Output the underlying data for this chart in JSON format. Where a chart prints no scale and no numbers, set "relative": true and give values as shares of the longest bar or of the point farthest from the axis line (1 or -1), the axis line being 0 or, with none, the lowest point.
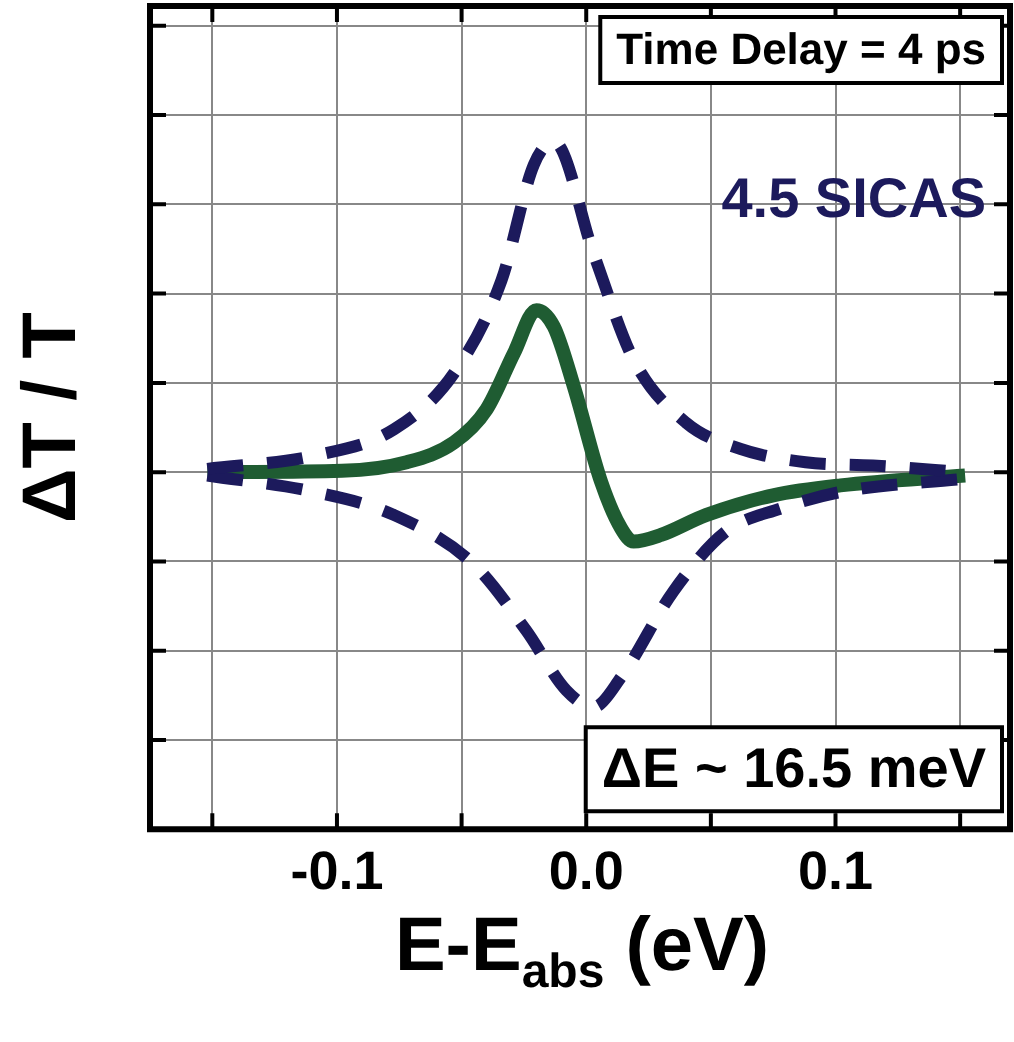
{
  "chart_data": {
    "type": "line",
    "relative": true,
    "xlabel": "E-E$_{abs}$ (eV)",
    "ylabel": "ΔT / T",
    "annotations": [
      "Time Delay = 4 ps",
      "4.5 SICAS",
      "ΔE ~ 16.5 meV"
    ],
    "xlim": [
      -0.175,
      0.17
    ],
    "xticks": [
      {
        "value": -0.15,
        "label": null
      },
      -0.1,
      {
        "value": -0.05,
        "label": null
      },
      {
        "value": 0,
        "label": "0.0"
      },
      {
        "value": 0.05,
        "label": null
      },
      0.1,
      {
        "value": 0.15,
        "label": null
      }
    ],
    "grid": true,
    "marker": "none",
    "series": [
      {
        "color": "#1c1a5c",
        "line_style": "dashed",
        "x": [
          -0.152,
          -0.109,
          -0.077,
          -0.053,
          -0.034,
          -0.021,
          -0.013,
          0.003,
          0.019,
          0.04,
          0.062,
          0.088,
          0.115,
          0.152
        ],
        "values": [
          0.01,
          0.05,
          0.13,
          0.3,
          0.58,
          0.93,
          1.0,
          0.66,
          0.34,
          0.15,
          0.07,
          0.03,
          0.02,
          0
        ]
      },
      {
        "color": "#1c1a5c",
        "line_style": "dashed",
        "x": [
          -0.152,
          -0.109,
          -0.077,
          -0.045,
          -0.024,
          -0.008,
          0.003,
          0.014,
          0.035,
          0.056,
          0.078,
          0.102,
          0.152
        ],
        "values": [
          -0.01,
          -0.06,
          -0.13,
          -0.28,
          -0.48,
          -0.66,
          -0.71,
          -0.62,
          -0.36,
          -0.18,
          -0.11,
          -0.06,
          -0.02
        ]
      },
      {
        "color": "#1f5c32",
        "line_style": "solid",
        "x": [
          -0.152,
          -0.098,
          -0.072,
          -0.053,
          -0.04,
          -0.029,
          -0.02,
          -0.013,
          -0.005,
          0.006,
          0.014,
          0.019,
          0.03,
          0.048,
          0.075,
          0.102,
          0.152
        ],
        "values": [
          0,
          0.004,
          0.03,
          0.09,
          0.19,
          0.36,
          0.49,
          0.44,
          0.26,
          -0.03,
          -0.17,
          -0.21,
          -0.19,
          -0.13,
          -0.07,
          -0.04,
          -0.01
        ]
      }
    ]
  }
}
